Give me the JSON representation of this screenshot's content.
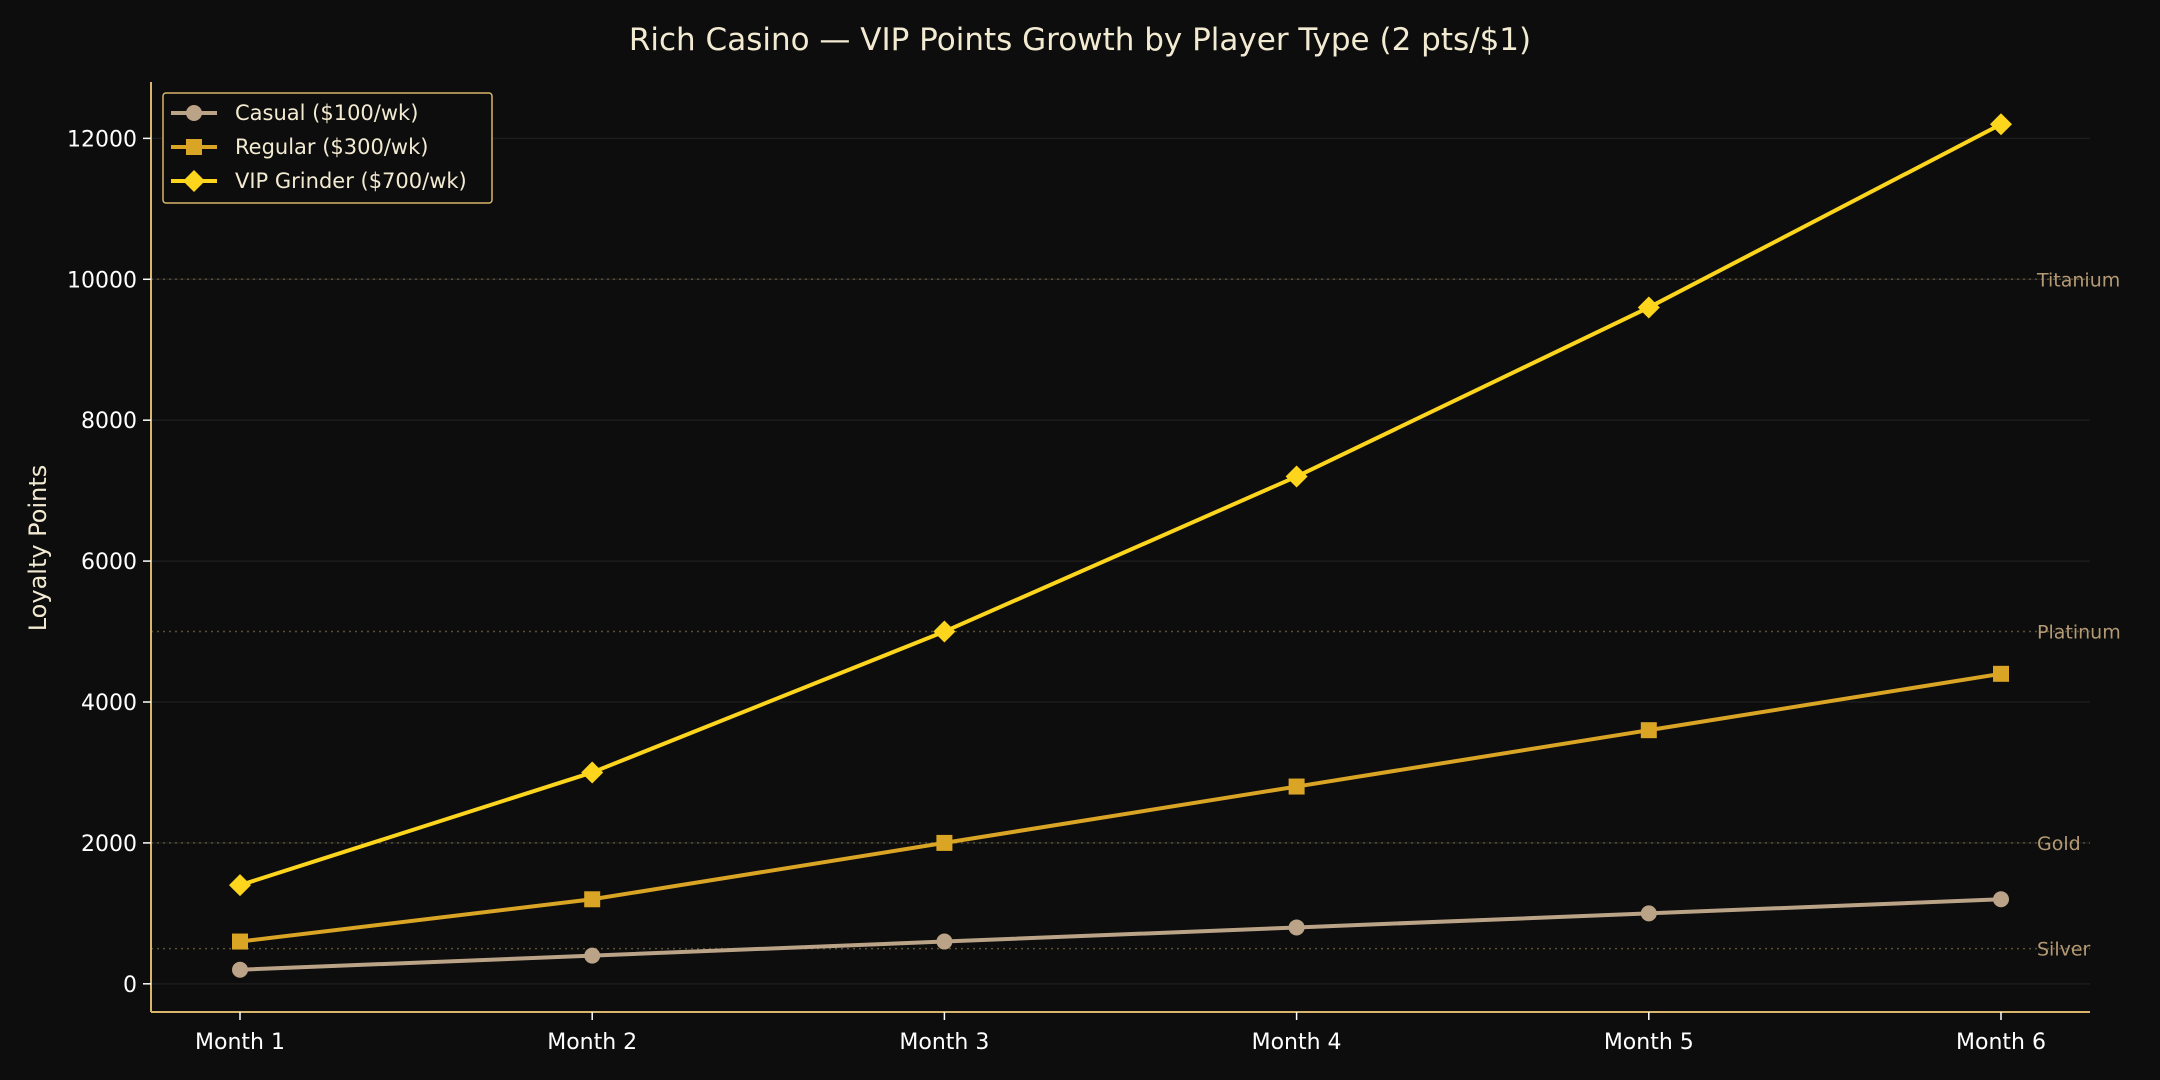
{
  "chart_data": {
    "type": "line",
    "title": "Rich Casino — VIP Points Growth by Player Type (2 pts/$1)",
    "xlabel": "",
    "ylabel": "Loyalty Points",
    "categories": [
      "Month 1",
      "Month 2",
      "Month 3",
      "Month 4",
      "Month 5",
      "Month 6"
    ],
    "ylim": [
      -400,
      12800
    ],
    "yticks": [
      0,
      2000,
      4000,
      6000,
      8000,
      10000,
      12000
    ],
    "grid": true,
    "legend_position": "top-left",
    "series": [
      {
        "name": "Casual ($100/wk)",
        "values": [
          200,
          400,
          600,
          800,
          1000,
          1200
        ],
        "color": "#bba387",
        "marker": "circle"
      },
      {
        "name": "Regular ($300/wk)",
        "values": [
          600,
          1200,
          2000,
          2800,
          3600,
          4400
        ],
        "color": "#daa425",
        "marker": "square"
      },
      {
        "name": "VIP Grinder ($700/wk)",
        "values": [
          1400,
          3000,
          5000,
          7200,
          9600,
          12200
        ],
        "color": "#fdd51d",
        "marker": "diamond"
      }
    ],
    "tiers": [
      {
        "label": "Silver",
        "value": 500
      },
      {
        "label": "Gold",
        "value": 2000
      },
      {
        "label": "Platinum",
        "value": 5000
      },
      {
        "label": "Titanium",
        "value": 10000
      }
    ]
  },
  "colors": {
    "background": "#0d0d0d",
    "axis": "#d8b56a",
    "text": "#f3ead2",
    "tier_line": "#5a5232",
    "tier_label": "#b49a74"
  }
}
